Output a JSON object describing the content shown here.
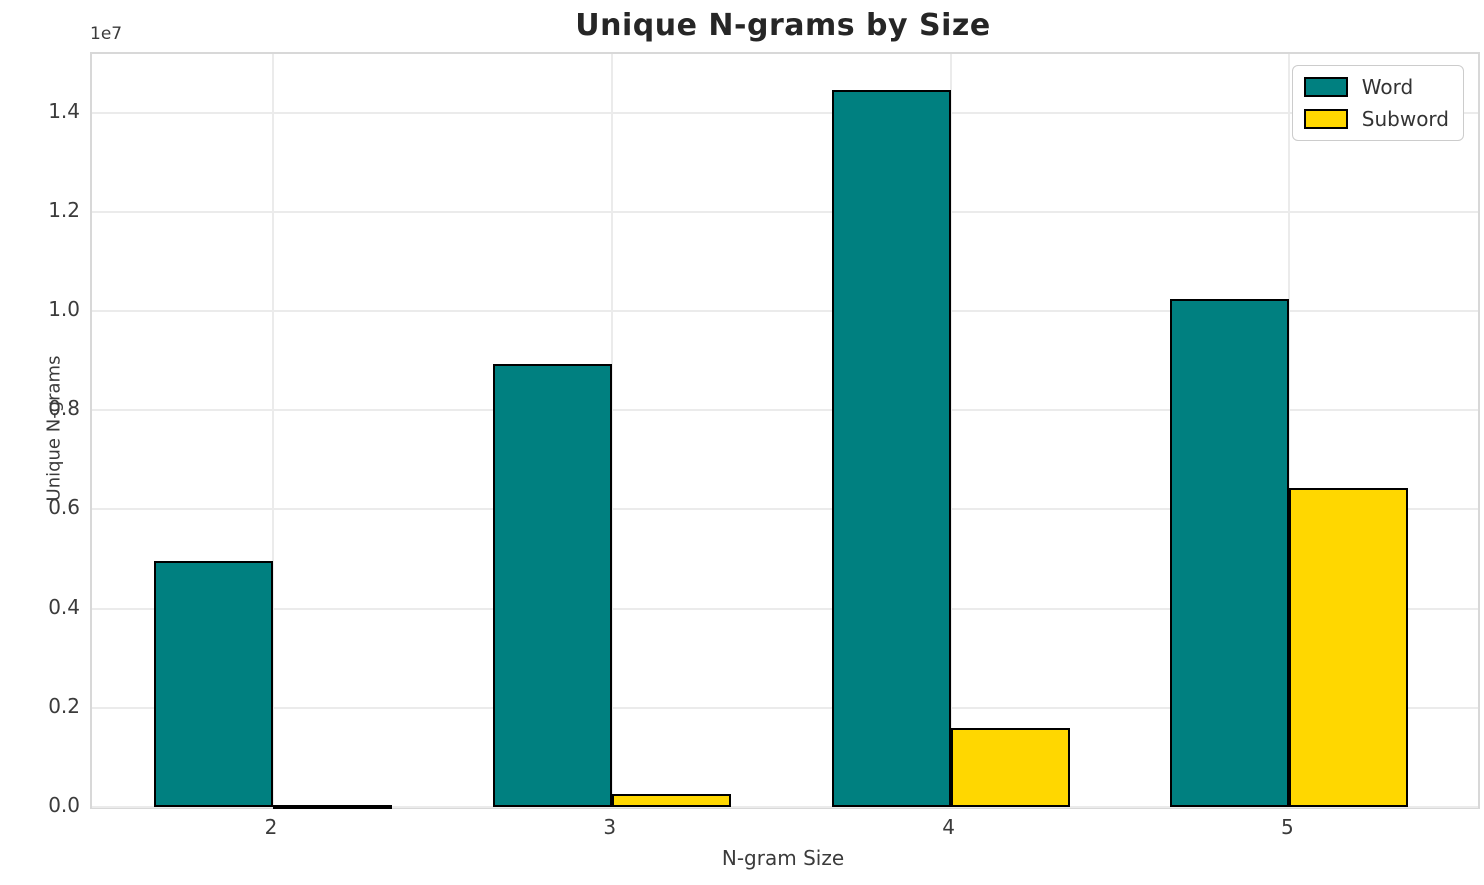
{
  "figure": {
    "offset_text": "1e7"
  },
  "chart_data": {
    "type": "bar",
    "title": "Unique N-grams by Size",
    "xlabel": "N-gram Size",
    "ylabel": "Unique N-grams",
    "categories": [
      "2",
      "3",
      "4",
      "5"
    ],
    "series": [
      {
        "name": "Word",
        "color": "#008080",
        "values": [
          4950000,
          8940000,
          14450000,
          10240000
        ]
      },
      {
        "name": "Subword",
        "color": "#FFD700",
        "values": [
          30000,
          260000,
          1600000,
          6440000
        ]
      }
    ],
    "bar_edge_color": "#000000",
    "ylim": [
      0,
      15180000
    ],
    "yticks": {
      "values": [
        0,
        2000000,
        4000000,
        6000000,
        8000000,
        10000000,
        12000000,
        14000000
      ],
      "labels": [
        "0.0",
        "0.2",
        "0.4",
        "0.6",
        "0.8",
        "1.0",
        "1.2",
        "1.4"
      ]
    },
    "offset_text": "1e7",
    "grid": true,
    "legend_position": "upper right"
  }
}
